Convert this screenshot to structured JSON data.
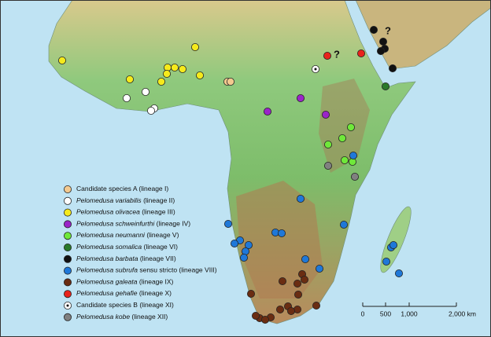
{
  "legend": [
    {
      "name": "Candidate species A",
      "note": "(lineage I)",
      "italic": false,
      "color": "#f3c98f",
      "marker": "dot"
    },
    {
      "name": "Pelomedusa variabilis",
      "note": "(lineage II)",
      "italic": true,
      "color": "#ffffff",
      "marker": "dot"
    },
    {
      "name": "Pelomedusa olivacea",
      "note": "(lineage III)",
      "italic": true,
      "color": "#f5ea1c",
      "marker": "dot"
    },
    {
      "name": "Pelomedusa schweinfurthi",
      "note": "(lineage IV)",
      "italic": true,
      "color": "#9a25c8",
      "marker": "dot"
    },
    {
      "name": "Pelomedusa neumanni",
      "note": "(lineage V)",
      "italic": true,
      "color": "#6fe83a",
      "marker": "dot"
    },
    {
      "name": "Pelomedusa somalica",
      "note": "(lineage VI)",
      "italic": true,
      "color": "#2a7a2a",
      "marker": "dot"
    },
    {
      "name": "Pelomedusa barbata",
      "note": "(lineage VII)",
      "italic": true,
      "color": "#111111",
      "marker": "dot"
    },
    {
      "name": "Pelomedusa subrufa",
      "note": "sensu stricto (lineage VIII)",
      "italic": true,
      "color": "#1f78d8",
      "marker": "dot"
    },
    {
      "name": "Pelomedusa galeata",
      "note": "(lineage IX)",
      "italic": true,
      "color": "#6a2d12",
      "marker": "dot"
    },
    {
      "name": "Pelomedusa gehafie",
      "note": "(lineage X)",
      "italic": true,
      "color": "#e8231c",
      "marker": "dot"
    },
    {
      "name": "Candidate species B",
      "note": "(lineage XI)",
      "italic": false,
      "color": "#ffffff",
      "marker": "target"
    },
    {
      "name": "Pelomedusa kobe",
      "note": "(lineage XII)",
      "italic": true,
      "color": "#808080",
      "marker": "dot"
    }
  ],
  "annotations": [
    "?",
    "?"
  ],
  "scale_bar": {
    "labels": [
      "0",
      "500",
      "1,000",
      "2,000 km"
    ]
  }
}
